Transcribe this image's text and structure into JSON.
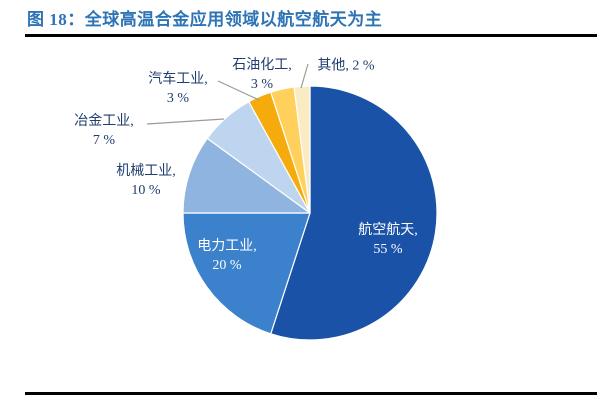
{
  "header": {
    "title": "图 18：全球高温合金应用领域以航空航天为主"
  },
  "colors": {
    "title_blue": "#2E74B5",
    "rule_black": "#000000",
    "label_outside": "#1F3D6E",
    "label_inside": "#FFFFFF",
    "leader_line": "#9B9B9B",
    "slice_border": "#FFFFFF"
  },
  "chart_data": {
    "type": "pie",
    "title": "图 18：全球高温合金应用领域以航空航天为主",
    "unit": "%",
    "start_angle_deg": 0,
    "direction": "clockwise",
    "legend": "none",
    "categories": [
      "航空航天",
      "电力工业",
      "机械工业",
      "冶金工业",
      "汽车工业",
      "石油化工",
      "其他"
    ],
    "values": [
      55,
      20,
      10,
      7,
      3,
      3,
      2
    ],
    "slices": [
      {
        "key": "aerospace",
        "name": "航空航天",
        "value": 55,
        "color": "#1A52A7",
        "label_line1": "航空航天,",
        "label_line2": "55 %"
      },
      {
        "key": "power",
        "name": "电力工业",
        "value": 20,
        "color": "#3C81CB",
        "label_line1": "电力工业,",
        "label_line2": "20 %"
      },
      {
        "key": "machinery",
        "name": "机械工业",
        "value": 10,
        "color": "#8FB4DF",
        "label_line1": "机械工业,",
        "label_line2": "10 %"
      },
      {
        "key": "metallurgy",
        "name": "冶金工业",
        "value": 7,
        "color": "#BDD5EE",
        "label_line1": "冶金工业,",
        "label_line2": "7 %"
      },
      {
        "key": "automotive",
        "name": "汽车工业",
        "value": 3,
        "color": "#F5AB0C",
        "label_line1": "汽车工业,",
        "label_line2": "3 %"
      },
      {
        "key": "petrochemical",
        "name": "石油化工",
        "value": 3,
        "color": "#FFD05C",
        "label_line1": "石油化工,",
        "label_line2": "3 %"
      },
      {
        "key": "others",
        "name": "其他",
        "value": 2,
        "color": "#FAEBC3",
        "label_line1": "其他, 2 %",
        "label_line2": ""
      }
    ]
  }
}
